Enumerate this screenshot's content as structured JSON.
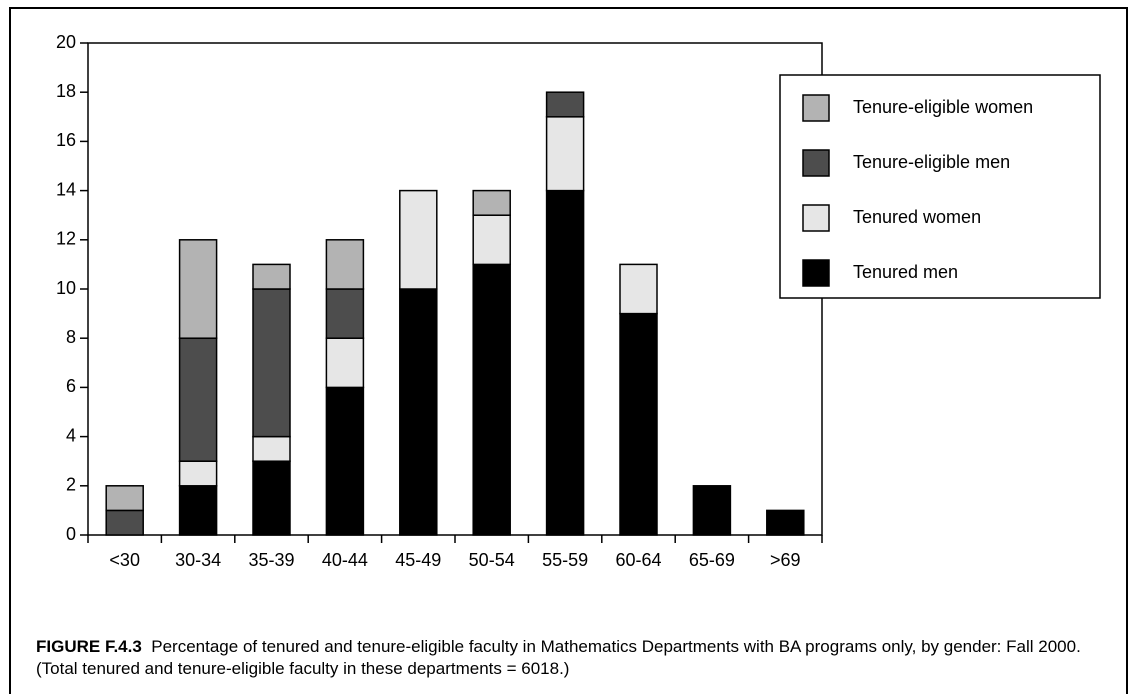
{
  "chart_data": {
    "type": "stacked_bar",
    "categories": [
      "<30",
      "30-34",
      "35-39",
      "40-44",
      "45-49",
      "50-54",
      "55-59",
      "60-64",
      "65-69",
      ">69"
    ],
    "series": [
      {
        "name": "Tenured men",
        "color": "#000000",
        "values": [
          0,
          2,
          3,
          6,
          10,
          11,
          14,
          9,
          2,
          1
        ]
      },
      {
        "name": "Tenured women",
        "color": "#e6e6e6",
        "values": [
          0,
          1,
          1,
          2,
          4,
          2,
          3,
          2,
          0,
          0
        ]
      },
      {
        "name": "Tenure-eligible men",
        "color": "#4d4d4d",
        "values": [
          1,
          5,
          6,
          2,
          0,
          0,
          1,
          0,
          0,
          0
        ]
      },
      {
        "name": "Tenure-eligible women",
        "color": "#b3b3b3",
        "values": [
          1,
          4,
          1,
          2,
          0,
          1,
          0,
          0,
          0,
          0
        ]
      }
    ],
    "ylim": [
      0,
      20
    ],
    "yticks": [
      0,
      2,
      4,
      6,
      8,
      10,
      12,
      14,
      16,
      18,
      20
    ],
    "legend": "upper right",
    "caption": {
      "label": "FIGURE F.4.3",
      "text": "Percentage of tenured and tenure-eligible faculty in Mathematics Departments with BA programs only, by gender: Fall 2000. (Total tenured and tenure-eligible faculty in these departments = 6018.)"
    }
  }
}
